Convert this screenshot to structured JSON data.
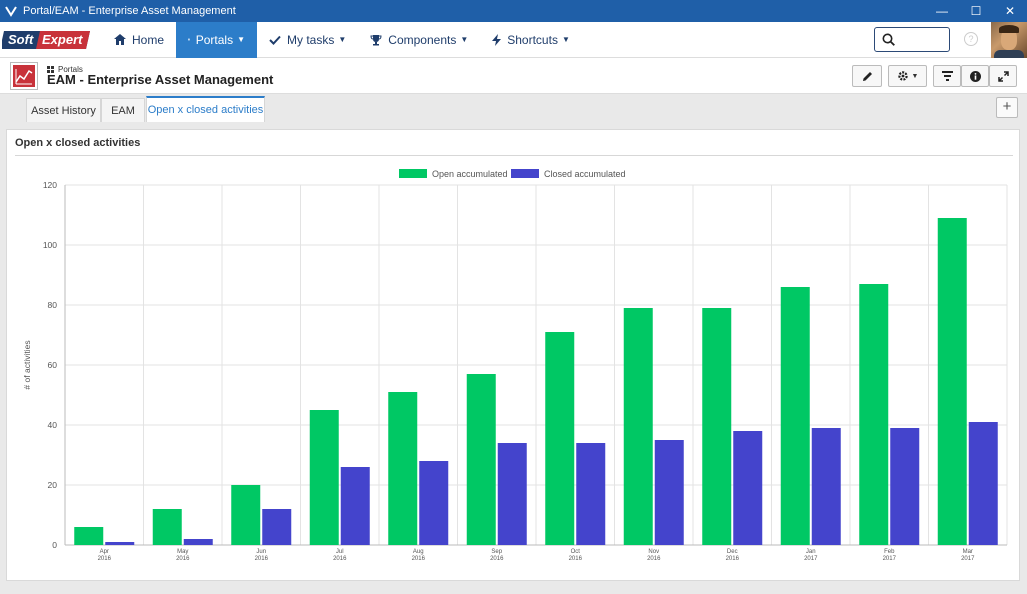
{
  "window": {
    "title": "Portal/EAM - Enterprise Asset Management",
    "minimize_glyph": "—",
    "maximize_glyph": "☐",
    "close_glyph": "✕"
  },
  "nav": {
    "logo_soft": "Soft",
    "logo_expert": "Expert",
    "items": [
      {
        "label": "Home",
        "icon": "home-icon"
      },
      {
        "label": "Portals",
        "icon": "grid-icon"
      },
      {
        "label": "My tasks",
        "icon": "check-icon"
      },
      {
        "label": "Components",
        "icon": "trophy-icon"
      },
      {
        "label": "Shortcuts",
        "icon": "bolt-icon"
      }
    ],
    "search_value": "",
    "help_glyph": "?"
  },
  "page": {
    "breadcrumb": "Portals",
    "title": "EAM - Enterprise Asset Management"
  },
  "tabs": [
    {
      "label": "Asset History"
    },
    {
      "label": "EAM"
    },
    {
      "label": "Open x closed activities"
    }
  ],
  "add_tab_glyph": "+",
  "panel": {
    "title": "Open x closed activities"
  },
  "colors": {
    "accent": "#2c7dc9",
    "titlebar": "#1f5fa8",
    "open": "#00c864",
    "closed": "#4444cc"
  },
  "chart_data": {
    "type": "bar",
    "categories": [
      "Apr",
      "May",
      "Jun",
      "Jul",
      "Aug",
      "Sep",
      "Oct",
      "Nov",
      "Dec",
      "Jan",
      "Feb",
      "Mar"
    ],
    "category_years": [
      "2016",
      "2016",
      "2016",
      "2016",
      "2016",
      "2016",
      "2016",
      "2016",
      "2016",
      "2017",
      "2017",
      "2017"
    ],
    "series": [
      {
        "name": "Open accumulated",
        "color": "#00c864",
        "values": [
          6,
          12,
          20,
          45,
          51,
          57,
          71,
          79,
          79,
          86,
          87,
          109
        ]
      },
      {
        "name": "Closed accumulated",
        "color": "#4444cc",
        "values": [
          1,
          2,
          12,
          26,
          28,
          34,
          34,
          35,
          38,
          39,
          39,
          41
        ]
      }
    ],
    "title": "",
    "xlabel": "",
    "ylabel": "# of activities",
    "ylim": [
      0,
      120
    ],
    "yticks": [
      "0",
      "20",
      "40",
      "60",
      "80",
      "100",
      "120"
    ],
    "grid": true,
    "legend": "top-center"
  }
}
